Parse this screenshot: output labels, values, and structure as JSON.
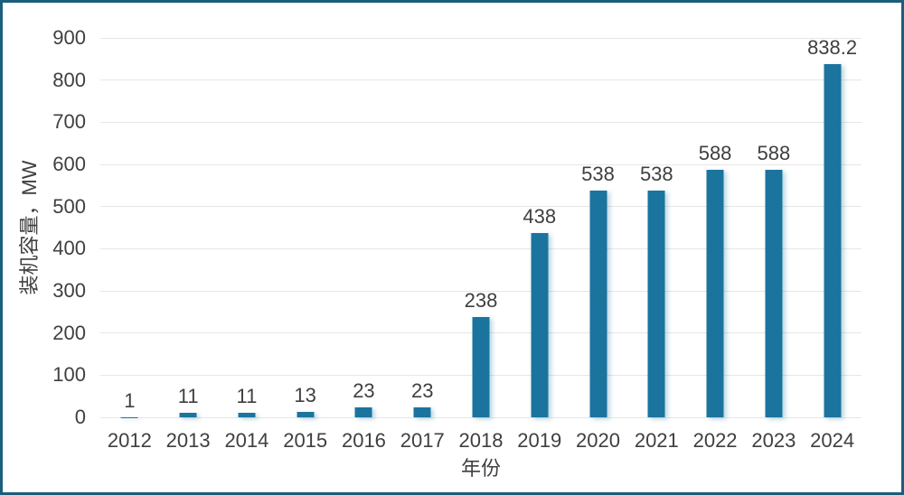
{
  "frame": {
    "border_color": "#1b5e7b",
    "background_color": "#ffffff"
  },
  "chart_data": {
    "type": "bar",
    "title": "",
    "xlabel": "年份",
    "ylabel": "装机容量，MW",
    "categories": [
      "2012",
      "2013",
      "2014",
      "2015",
      "2016",
      "2017",
      "2018",
      "2019",
      "2020",
      "2021",
      "2022",
      "2023",
      "2024"
    ],
    "values": [
      1,
      11,
      11,
      13,
      23,
      23,
      238,
      438,
      538,
      538,
      588,
      588,
      838.2
    ],
    "data_labels": [
      "1",
      "11",
      "11",
      "13",
      "23",
      "23",
      "238",
      "438",
      "538",
      "538",
      "588",
      "588",
      "838.2"
    ],
    "ylim": [
      0,
      900
    ],
    "ytick_interval": 100,
    "ytick_labels": [
      "0",
      "100",
      "200",
      "300",
      "400",
      "500",
      "600",
      "700",
      "800",
      "900"
    ],
    "grid": "horizontal",
    "legend_position": "none",
    "bar_color": "#1b749e",
    "gridline_color": "#e6e6e6",
    "text_color": "#3f3f3f"
  }
}
